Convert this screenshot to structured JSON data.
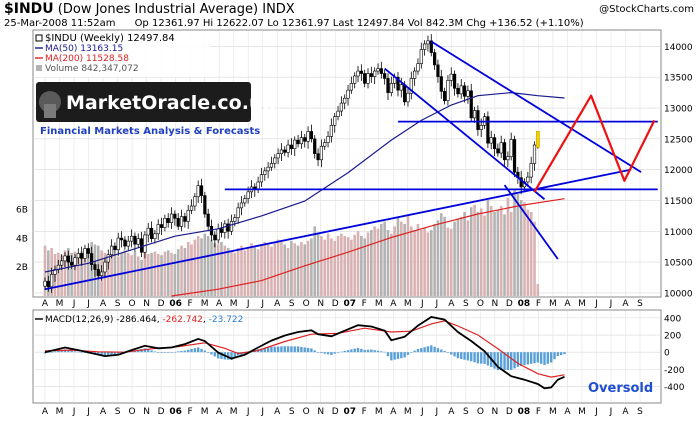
{
  "header": {
    "symbol": "$INDU",
    "name": "(Dow Jones Industrial Average)",
    "exchange": "INDX",
    "date_time": "25-Mar-2008 11:52am",
    "stats": "Op 12361.97  Hi 12622.07  Lo 12361.97  Last 12497.84  Vol 842.3M  Chg +136.52 (+1.10%)",
    "credit": "@StockCharts.com"
  },
  "legend": {
    "price": "$INDU (Weekly) 12497.84",
    "ma50": "MA(50) 13163.15",
    "ma200": "MA(200) 11528.58",
    "volume": "Volume 842,347,072"
  },
  "branding": {
    "logo_text": "MarketOracle.co.uk",
    "tagline": "Financial Markets Analysis & Forecasts"
  },
  "colors": {
    "price": "#000000",
    "ma50": "#1a1a8c",
    "ma200": "#dd2222",
    "volume_up": "#d9b3b3",
    "volume_down": "#b3b3b3",
    "trend": "#0000dd",
    "forecast": "#ee1111",
    "macd_line": "#000000",
    "signal_line": "#dd2222",
    "histogram": "#5aa0d8",
    "oversold": "#1f4fd0"
  },
  "chart_data": [
    {
      "type": "candlestick",
      "title": "$INDU (Weekly)",
      "x_ticks": [
        "A",
        "M",
        "J",
        "J",
        "A",
        "S",
        "O",
        "N",
        "D",
        "06",
        "F",
        "M",
        "A",
        "M",
        "J",
        "J",
        "A",
        "S",
        "O",
        "N",
        "D",
        "07",
        "F",
        "M",
        "A",
        "M",
        "J",
        "J",
        "A",
        "S",
        "O",
        "N",
        "D",
        "08",
        "F",
        "M",
        "A",
        "M",
        "J",
        "J",
        "A",
        "S"
      ],
      "yticks": [
        10000,
        10500,
        11000,
        11500,
        12000,
        12500,
        13000,
        13500,
        14000
      ],
      "ylim": [
        9950,
        14250
      ],
      "volume_ticks": [
        "2B",
        "4B",
        "6B"
      ],
      "x_index_range": [
        0,
        156
      ],
      "close": [
        10190,
        10100,
        10300,
        10380,
        10450,
        10520,
        10600,
        10500,
        10450,
        10570,
        10640,
        10560,
        10720,
        10640,
        10460,
        10380,
        10280,
        10340,
        10500,
        10620,
        10760,
        10700,
        10890,
        10860,
        10760,
        10840,
        10920,
        10790,
        10880,
        10660,
        10940,
        11050,
        10880,
        10960,
        11110,
        11060,
        11210,
        11140,
        11280,
        11210,
        11080,
        11240,
        11160,
        11340,
        11410,
        11560,
        11740,
        11580,
        11280,
        11080,
        10940,
        10860,
        11040,
        10980,
        11120,
        11000,
        11160,
        11220,
        11380,
        11460,
        11530,
        11640,
        11720,
        11680,
        11800,
        11920,
        11980,
        12040,
        12100,
        12190,
        12260,
        12320,
        12280,
        12400,
        12340,
        12480,
        12420,
        12520,
        12460,
        12620,
        12500,
        12260,
        12160,
        12380,
        12440,
        12540,
        12720,
        12860,
        12950,
        13080,
        13160,
        13290,
        13400,
        13520,
        13600,
        13560,
        13400,
        13560,
        13510,
        13600,
        13640,
        13560,
        13480,
        13250,
        13400,
        13500,
        13290,
        13380,
        13100,
        13240,
        13480,
        13600,
        13720,
        13950,
        14040,
        14090,
        13900,
        13700,
        13510,
        13270,
        13120,
        13450,
        13550,
        13320,
        13230,
        13360,
        13190,
        13280,
        12840,
        12960,
        12650,
        12720,
        12860,
        12430,
        12520,
        12340,
        12270,
        12440,
        12160,
        12210,
        12490,
        11960,
        11870,
        11720,
        11800,
        11880,
        12100,
        12400,
        12498
      ],
      "ma50_points": [
        [
          0,
          10340
        ],
        [
          13,
          10480
        ],
        [
          26,
          10700
        ],
        [
          39,
          10920
        ],
        [
          52,
          11040
        ],
        [
          65,
          11250
        ],
        [
          78,
          11490
        ],
        [
          91,
          11950
        ],
        [
          104,
          12480
        ],
        [
          113,
          12800
        ],
        [
          122,
          13050
        ],
        [
          130,
          13200
        ],
        [
          140,
          13250
        ],
        [
          148,
          13200
        ],
        [
          156,
          13163
        ]
      ],
      "ma200_points": [
        [
          38,
          9950
        ],
        [
          52,
          10060
        ],
        [
          65,
          10200
        ],
        [
          78,
          10440
        ],
        [
          91,
          10660
        ],
        [
          104,
          10900
        ],
        [
          117,
          11100
        ],
        [
          130,
          11280
        ],
        [
          143,
          11420
        ],
        [
          156,
          11529
        ]
      ],
      "volume_scaled": [
        0.42,
        0.38,
        0.4,
        0.35,
        0.36,
        0.34,
        0.38,
        0.4,
        0.36,
        0.37,
        0.35,
        0.37,
        0.39,
        0.4,
        0.45,
        0.43,
        0.42,
        0.38,
        0.36,
        0.34,
        0.37,
        0.35,
        0.33,
        0.36,
        0.38,
        0.36,
        0.34,
        0.37,
        0.33,
        0.3,
        0.38,
        0.35,
        0.36,
        0.37,
        0.35,
        0.34,
        0.37,
        0.38,
        0.36,
        0.35,
        0.39,
        0.42,
        0.4,
        0.45,
        0.43,
        0.47,
        0.5,
        0.48,
        0.52,
        0.5,
        0.47,
        0.44,
        0.43,
        0.45,
        0.42,
        0.4,
        0.38,
        0.36,
        0.4,
        0.42,
        0.38,
        0.41,
        0.44,
        0.42,
        0.39,
        0.43,
        0.45,
        0.43,
        0.41,
        0.44,
        0.47,
        0.45,
        0.43,
        0.4,
        0.46,
        0.44,
        0.42,
        0.45,
        0.43,
        0.46,
        0.48,
        0.58,
        0.53,
        0.5,
        0.47,
        0.52,
        0.48,
        0.46,
        0.5,
        0.52,
        0.5,
        0.49,
        0.47,
        0.51,
        0.54,
        0.5,
        0.48,
        0.53,
        0.55,
        0.58,
        0.56,
        0.6,
        0.62,
        0.55,
        0.52,
        0.58,
        0.66,
        0.62,
        0.6,
        0.68,
        0.58,
        0.55,
        0.6,
        0.55,
        0.57,
        0.53,
        0.55,
        0.6,
        0.63,
        0.69,
        0.66,
        0.57,
        0.56,
        0.62,
        0.64,
        0.66,
        0.7,
        0.63,
        0.74,
        0.76,
        0.7,
        0.73,
        0.67,
        0.8,
        0.75,
        0.7,
        0.72,
        0.75,
        0.68,
        0.82,
        0.7,
        0.89,
        0.85,
        0.8,
        0.78,
        0.72,
        0.7,
        0.62,
        0.1
      ],
      "trend_lines": [
        {
          "from": [
            0,
            10060
          ],
          "to": [
            176,
            12000
          ]
        },
        {
          "from": [
            106,
            12780
          ],
          "to": [
            184,
            12780
          ]
        },
        {
          "from": [
            54,
            11680
          ],
          "to": [
            184,
            11680
          ]
        },
        {
          "from": [
            116,
            14080
          ],
          "to": [
            179,
            11960
          ]
        },
        {
          "from": [
            102,
            13640
          ],
          "to": [
            150,
            11520
          ]
        },
        {
          "from": [
            138,
            11750
          ],
          "to": [
            154,
            10550
          ]
        }
      ],
      "forecast_path": [
        [
          147,
          11640
        ],
        [
          164,
          13200
        ],
        [
          174,
          11820
        ],
        [
          183,
          12800
        ]
      ]
    },
    {
      "type": "line",
      "title": "MACD(12,26,9)",
      "macd_label": "MACD(12,26,9)",
      "macd_value": "-286.464",
      "signal_value": "-262.742",
      "hist_value": "-23.722",
      "yticks": [
        -400,
        -200,
        0,
        200,
        400
      ],
      "ylim": [
        -580,
        480
      ],
      "macd_points": [
        [
          0,
          0
        ],
        [
          6,
          55
        ],
        [
          10,
          25
        ],
        [
          14,
          -10
        ],
        [
          18,
          -45
        ],
        [
          22,
          -30
        ],
        [
          26,
          25
        ],
        [
          30,
          75
        ],
        [
          34,
          45
        ],
        [
          38,
          55
        ],
        [
          42,
          95
        ],
        [
          46,
          155
        ],
        [
          48,
          130
        ],
        [
          52,
          -5
        ],
        [
          56,
          -75
        ],
        [
          60,
          -30
        ],
        [
          64,
          55
        ],
        [
          68,
          135
        ],
        [
          72,
          195
        ],
        [
          76,
          235
        ],
        [
          80,
          255
        ],
        [
          82,
          210
        ],
        [
          86,
          185
        ],
        [
          90,
          250
        ],
        [
          94,
          315
        ],
        [
          98,
          300
        ],
        [
          102,
          250
        ],
        [
          104,
          140
        ],
        [
          108,
          180
        ],
        [
          112,
          310
        ],
        [
          116,
          410
        ],
        [
          120,
          380
        ],
        [
          124,
          235
        ],
        [
          128,
          130
        ],
        [
          132,
          10
        ],
        [
          136,
          -170
        ],
        [
          140,
          -280
        ],
        [
          144,
          -320
        ],
        [
          148,
          -370
        ],
        [
          150,
          -420
        ],
        [
          152,
          -410
        ],
        [
          154,
          -320
        ],
        [
          156,
          -286
        ]
      ],
      "signal_points": [
        [
          0,
          15
        ],
        [
          8,
          25
        ],
        [
          16,
          5
        ],
        [
          24,
          0
        ],
        [
          32,
          40
        ],
        [
          40,
          65
        ],
        [
          48,
          110
        ],
        [
          54,
          45
        ],
        [
          58,
          -15
        ],
        [
          64,
          20
        ],
        [
          72,
          125
        ],
        [
          80,
          210
        ],
        [
          88,
          220
        ],
        [
          96,
          280
        ],
        [
          104,
          235
        ],
        [
          110,
          245
        ],
        [
          116,
          330
        ],
        [
          120,
          365
        ],
        [
          124,
          305
        ],
        [
          130,
          200
        ],
        [
          136,
          40
        ],
        [
          142,
          -130
        ],
        [
          148,
          -250
        ],
        [
          152,
          -290
        ],
        [
          156,
          -263
        ]
      ],
      "annotation": "Oversold"
    }
  ]
}
